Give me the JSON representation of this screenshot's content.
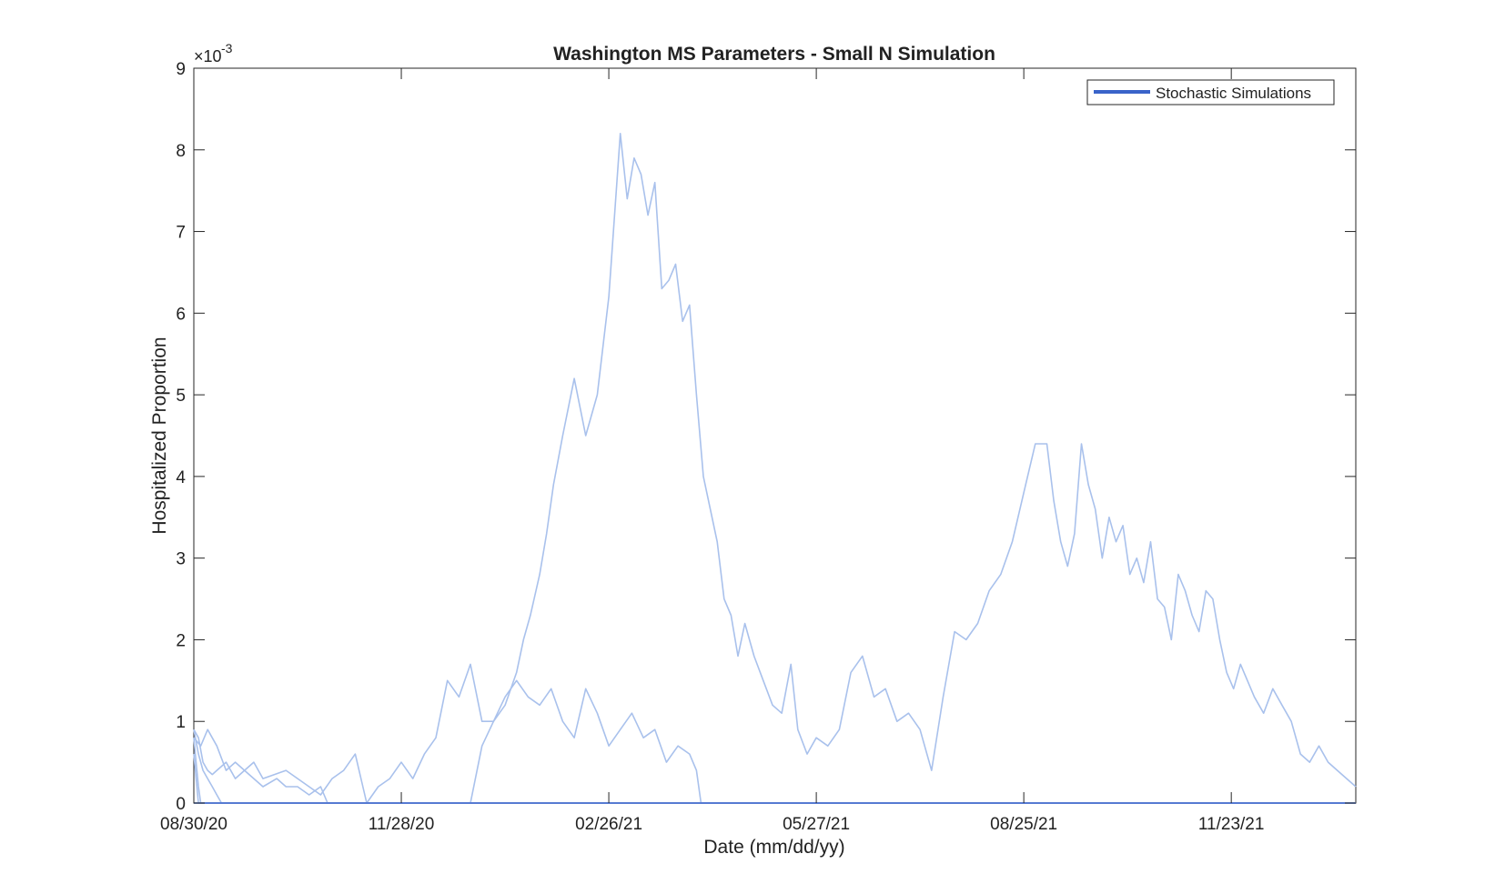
{
  "chart_data": {
    "type": "line",
    "title": "Washington MS Parameters - Small N Simulation",
    "xlabel": "Date (mm/dd/yy)",
    "ylabel": "Hospitalized Proportion",
    "y_exponent_label": "×10",
    "y_exponent_power": "-3",
    "x_ticks": [
      "08/30/20",
      "11/28/20",
      "02/26/21",
      "05/27/21",
      "08/25/21",
      "11/23/21"
    ],
    "x_tick_days": [
      0,
      90,
      180,
      270,
      360,
      450
    ],
    "xlim": [
      0,
      504
    ],
    "y_ticks": [
      "0",
      "1",
      "2",
      "3",
      "4",
      "5",
      "6",
      "7",
      "8",
      "9"
    ],
    "ylim": [
      0,
      9
    ],
    "y_scale_note": "values in units of 10^-3",
    "grid": false,
    "legend": {
      "position": "top-right",
      "entries": [
        "Stochastic Simulations"
      ]
    },
    "line_color": "#a9c1ec",
    "legend_line_color": "#3a63c9",
    "series": [
      {
        "x": [
          0,
          120,
          125,
          130,
          135,
          140,
          143,
          146,
          150,
          153,
          156,
          160,
          165,
          170,
          175,
          180,
          185,
          188,
          191,
          194,
          197,
          200,
          203,
          206,
          209,
          212,
          215,
          218,
          221,
          224,
          227,
          230,
          233,
          236,
          239,
          243,
          247,
          251,
          255,
          259,
          262,
          266,
          270,
          275,
          280,
          285,
          290,
          295,
          300,
          305,
          310,
          315,
          320,
          325,
          330,
          335,
          340,
          345,
          350,
          355,
          360,
          365,
          370,
          373,
          376,
          379,
          382,
          385,
          388,
          391,
          394,
          397,
          400,
          403,
          406,
          409,
          412,
          415,
          418,
          421,
          424,
          427,
          430,
          433,
          436,
          439,
          442,
          445,
          448,
          451,
          454,
          457,
          460,
          464,
          468,
          472,
          476,
          480,
          484,
          488,
          492,
          496,
          500,
          504
        ],
        "y": [
          0,
          0,
          0.7,
          1.0,
          1.2,
          1.6,
          2.0,
          2.3,
          2.8,
          3.3,
          3.9,
          4.5,
          5.2,
          4.5,
          5.0,
          6.2,
          8.2,
          7.4,
          7.9,
          7.7,
          7.2,
          7.6,
          6.3,
          6.4,
          6.6,
          5.9,
          6.1,
          5.0,
          4.0,
          3.6,
          3.2,
          2.5,
          2.3,
          1.8,
          2.2,
          1.8,
          1.5,
          1.2,
          1.1,
          1.7,
          0.9,
          0.6,
          0.8,
          0.7,
          0.9,
          1.6,
          1.8,
          1.3,
          1.4,
          1.0,
          1.1,
          0.9,
          0.4,
          1.3,
          2.1,
          2.0,
          2.2,
          2.6,
          2.8,
          3.2,
          3.8,
          4.4,
          4.4,
          3.7,
          3.2,
          2.9,
          3.3,
          4.4,
          3.9,
          3.6,
          3.0,
          3.5,
          3.2,
          3.4,
          2.8,
          3.0,
          2.7,
          3.2,
          2.5,
          2.4,
          2.0,
          2.8,
          2.6,
          2.3,
          2.1,
          2.6,
          2.5,
          2.0,
          1.6,
          1.4,
          1.7,
          1.5,
          1.3,
          1.1,
          1.4,
          1.2,
          1.0,
          0.6,
          0.5,
          0.7,
          0.5,
          0.4,
          0.3,
          0.2
        ]
      },
      {
        "x": [
          0,
          2,
          4,
          6,
          8,
          10,
          14,
          18,
          22,
          26,
          30,
          40,
          50,
          55,
          60,
          65,
          70,
          75,
          80,
          85,
          90,
          95,
          100,
          105,
          110,
          115,
          120,
          125,
          130,
          135,
          140,
          145,
          150,
          155,
          160,
          165,
          170,
          175,
          180,
          185,
          190,
          195,
          200,
          205,
          210,
          215,
          218,
          220,
          504
        ],
        "y": [
          0.9,
          0.8,
          0.5,
          0.4,
          0.35,
          0.4,
          0.5,
          0.3,
          0.4,
          0.5,
          0.3,
          0.4,
          0.2,
          0.1,
          0.3,
          0.4,
          0.6,
          0,
          0.2,
          0.3,
          0.5,
          0.3,
          0.6,
          0.8,
          1.5,
          1.3,
          1.7,
          1.0,
          1.0,
          1.3,
          1.5,
          1.3,
          1.2,
          1.4,
          1.0,
          0.8,
          1.4,
          1.1,
          0.7,
          0.9,
          1.1,
          0.8,
          0.9,
          0.5,
          0.7,
          0.6,
          0.4,
          0,
          0
        ]
      },
      {
        "x": [
          0,
          3,
          6,
          10,
          14,
          18,
          22,
          26,
          30,
          36,
          40,
          45,
          50,
          55,
          58,
          504
        ],
        "y": [
          0.8,
          0.7,
          0.9,
          0.7,
          0.4,
          0.5,
          0.4,
          0.3,
          0.2,
          0.3,
          0.2,
          0.2,
          0.1,
          0.2,
          0,
          0
        ]
      },
      {
        "x": [
          0,
          2,
          4,
          6,
          8,
          10,
          12,
          504
        ],
        "y": [
          0.9,
          0.6,
          0.4,
          0.3,
          0.2,
          0.1,
          0,
          0
        ]
      },
      {
        "x": [
          0,
          1,
          2,
          3,
          504
        ],
        "y": [
          0.8,
          0.5,
          0.2,
          0,
          0
        ]
      },
      {
        "x": [
          0,
          1,
          2,
          504
        ],
        "y": [
          0.6,
          0.3,
          0,
          0
        ]
      },
      {
        "x": [
          0,
          504
        ],
        "y": [
          0,
          0
        ]
      }
    ]
  }
}
